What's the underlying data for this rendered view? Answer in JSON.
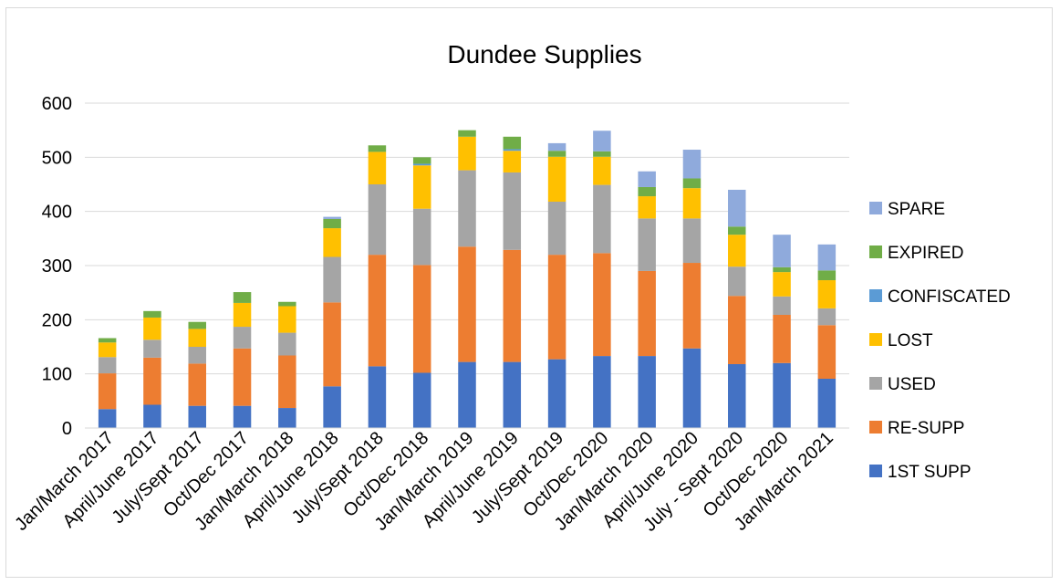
{
  "chart_data": {
    "type": "bar",
    "stacked": true,
    "title": "Dundee Supplies",
    "xlabel": "",
    "ylabel": "",
    "ylim": [
      0,
      600
    ],
    "yticks": [
      0,
      100,
      200,
      300,
      400,
      500,
      600
    ],
    "grid": true,
    "legend_position": "right",
    "categories": [
      "Jan/March 2017",
      "April/June 2017",
      "July/Sept 2017",
      "Oct/Dec 2017",
      "Jan/March 2018",
      "April/June 2018",
      "July/Sept 2018",
      "Oct/Dec 2018",
      "Jan/March 2019",
      "April/June 2019",
      "July/Sept 2019",
      "Oct/Dec 2020",
      "Jan/March 2020",
      "April/June 2020",
      "July - Sept 2020",
      "Oct/Dec 2020",
      "Jan/March 2021"
    ],
    "series": [
      {
        "name": "1ST  SUPP",
        "color": "#4472c4",
        "values": [
          35,
          43,
          41,
          41,
          37,
          77,
          114,
          102,
          122,
          122,
          127,
          133,
          133,
          147,
          118,
          120,
          91
        ]
      },
      {
        "name": "RE-SUPP",
        "color": "#ed7d31",
        "values": [
          66,
          87,
          78,
          106,
          97,
          155,
          206,
          199,
          213,
          207,
          193,
          190,
          157,
          158,
          126,
          89,
          99
        ]
      },
      {
        "name": "USED",
        "color": "#a5a5a5",
        "values": [
          30,
          33,
          31,
          40,
          42,
          84,
          130,
          104,
          141,
          143,
          98,
          126,
          97,
          82,
          54,
          34,
          31
        ]
      },
      {
        "name": "LOST",
        "color": "#ffc000",
        "values": [
          27,
          41,
          33,
          44,
          49,
          53,
          60,
          80,
          62,
          40,
          83,
          52,
          41,
          56,
          59,
          45,
          52
        ]
      },
      {
        "name": "CONFISCATED",
        "color": "#5b9bd5",
        "values": [
          0,
          0,
          0,
          0,
          0,
          0,
          0,
          3,
          0,
          3,
          0,
          0,
          0,
          0,
          0,
          0,
          0
        ]
      },
      {
        "name": "EXPIRED",
        "color": "#70ad47",
        "values": [
          8,
          12,
          13,
          20,
          8,
          17,
          12,
          12,
          12,
          23,
          11,
          10,
          17,
          18,
          15,
          9,
          18
        ]
      },
      {
        "name": "SPARE",
        "color": "#8faadc",
        "values": [
          0,
          0,
          0,
          0,
          0,
          4,
          0,
          0,
          0,
          0,
          14,
          38,
          29,
          53,
          68,
          60,
          48
        ]
      }
    ]
  }
}
